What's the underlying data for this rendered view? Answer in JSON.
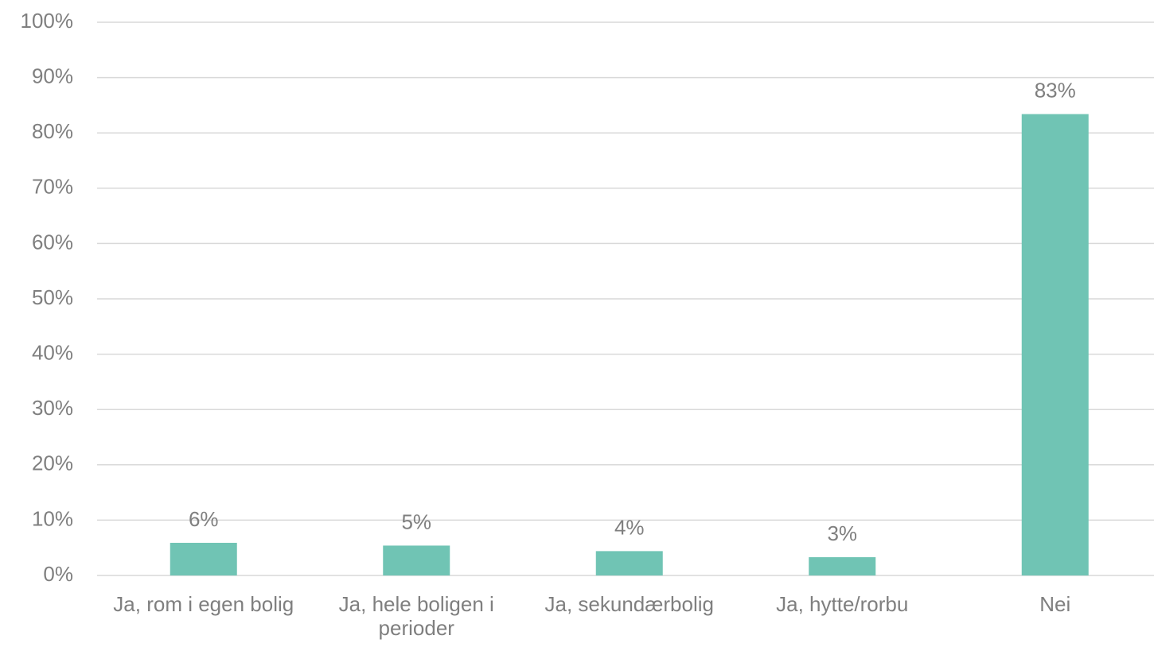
{
  "chart_data": {
    "type": "bar",
    "categories": [
      "Ja, rom i egen bolig",
      "Ja, hele boligen i perioder",
      "Ja, sekundærbolig",
      "Ja, hytte/rorbu",
      "Nei"
    ],
    "values": [
      5.9,
      5.4,
      4.4,
      3.3,
      83.4
    ],
    "value_labels": [
      "6%",
      "5%",
      "4%",
      "3%",
      "83%"
    ],
    "color": "#70c4b4",
    "ylim": [
      0,
      100
    ],
    "yticks": [
      {
        "value": 0,
        "label": "0%"
      },
      {
        "value": 10,
        "label": "10%"
      },
      {
        "value": 20,
        "label": "20%"
      },
      {
        "value": 30,
        "label": "30%"
      },
      {
        "value": 40,
        "label": "40%"
      },
      {
        "value": 50,
        "label": "50%"
      },
      {
        "value": 60,
        "label": "60%"
      },
      {
        "value": 70,
        "label": "70%"
      },
      {
        "value": 80,
        "label": "80%"
      },
      {
        "value": 90,
        "label": "90%"
      },
      {
        "value": 100,
        "label": "100%"
      }
    ],
    "grid": true
  }
}
